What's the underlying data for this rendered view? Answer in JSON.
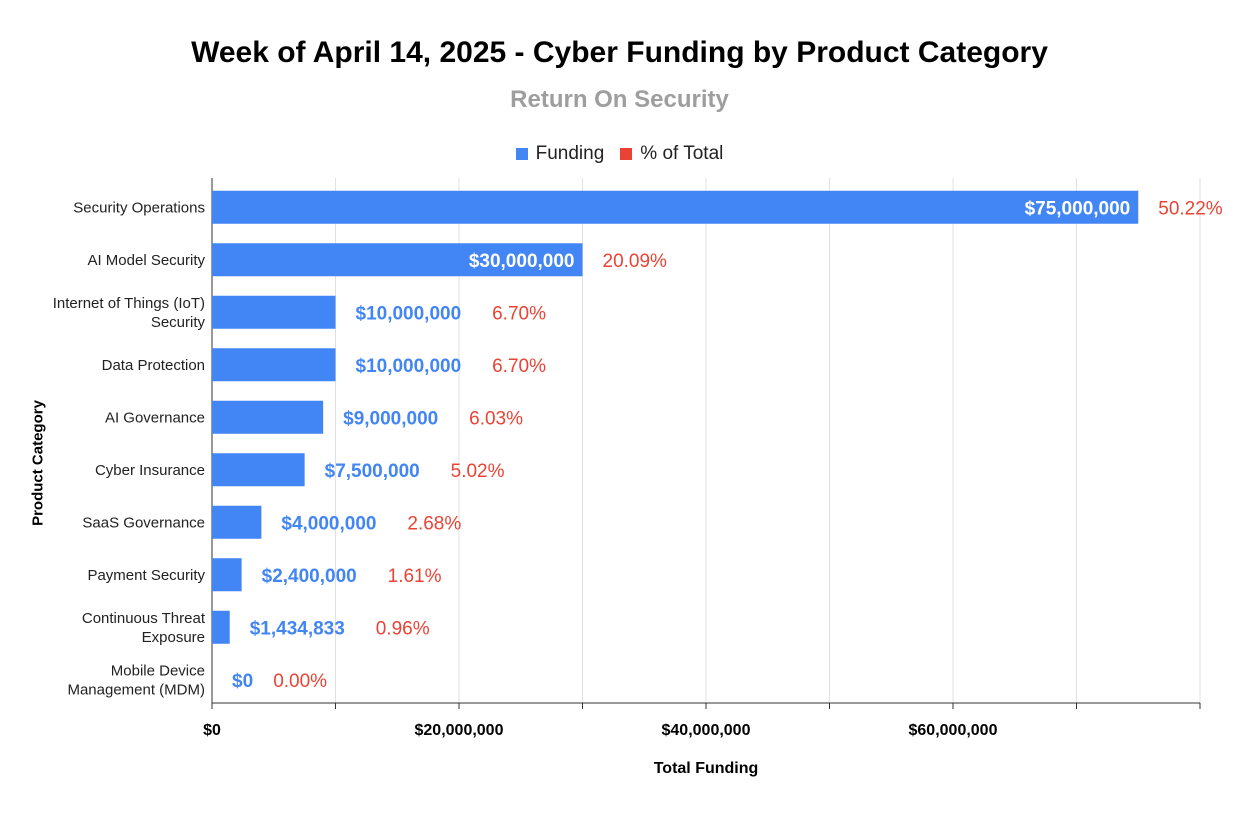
{
  "chart_data": {
    "type": "bar",
    "orientation": "horizontal",
    "title": "Week of April 14, 2025 - Cyber Funding by Product Category",
    "subtitle": "Return On Security",
    "xlabel": "Total Funding",
    "ylabel": "Product Category",
    "xlim": [
      0,
      80000000
    ],
    "xticks": [
      0,
      20000000,
      40000000,
      60000000
    ],
    "xtick_labels": [
      "$0",
      "$20,000,000",
      "$40,000,000",
      "$60,000,000"
    ],
    "legend": [
      {
        "name": "Funding",
        "color": "#4285f4"
      },
      {
        "name": "% of Total",
        "color": "#ea4335"
      }
    ],
    "legend_position": "top-center",
    "categories": [
      [
        "Security Operations"
      ],
      [
        "AI Model Security"
      ],
      [
        "Internet of Things (IoT)",
        "Security"
      ],
      [
        "Data Protection"
      ],
      [
        "AI Governance"
      ],
      [
        "Cyber Insurance"
      ],
      [
        "SaaS Governance"
      ],
      [
        "Payment Security"
      ],
      [
        "Continuous Threat",
        "Exposure"
      ],
      [
        "Mobile Device",
        "Management (MDM)"
      ]
    ],
    "series": [
      {
        "name": "Funding",
        "color": "#4285f4",
        "values": [
          75000000,
          30000000,
          10000000,
          10000000,
          9000000,
          7500000,
          4000000,
          2400000,
          1434833,
          0
        ],
        "labels": [
          "$75,000,000",
          "$30,000,000",
          "$10,000,000",
          "$10,000,000",
          "$9,000,000",
          "$7,500,000",
          "$4,000,000",
          "$2,400,000",
          "$1,434,833",
          "$0"
        ]
      },
      {
        "name": "% of Total",
        "color": "#ea4335",
        "values": [
          50.22,
          20.09,
          6.7,
          6.7,
          6.03,
          5.02,
          2.68,
          1.61,
          0.96,
          0.0
        ],
        "labels": [
          "50.22%",
          "20.09%",
          "6.70%",
          "6.70%",
          "6.03%",
          "5.02%",
          "2.68%",
          "1.61%",
          "0.96%",
          "0.00%"
        ]
      }
    ],
    "grid": true
  }
}
